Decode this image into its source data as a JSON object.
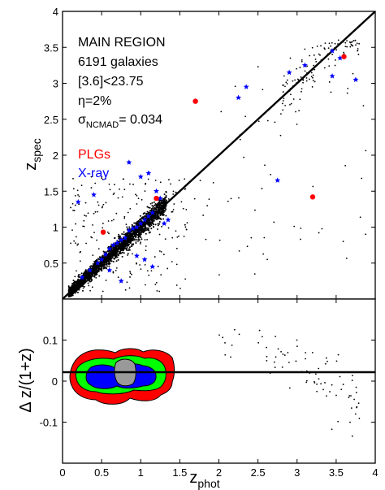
{
  "chart_data": [
    {
      "type": "scatter",
      "panel": "top",
      "xlabel": "z",
      "xlabel_sub": "phot",
      "ylabel": "z",
      "ylabel_sub": "spec",
      "xlim": [
        0,
        4
      ],
      "ylim": [
        0,
        4
      ],
      "xticks": [
        0,
        0.5,
        1,
        1.5,
        2,
        2.5,
        3,
        3.5,
        4
      ],
      "yticks": [
        0.5,
        1,
        1.5,
        2,
        2.5,
        3,
        3.5,
        4
      ],
      "annotations": {
        "region": "MAIN REGION",
        "count": "6191 galaxies",
        "cut": "[3.6]<23.75",
        "eta": "η=2%",
        "sigma_symbol": "σ",
        "sigma_sub": "NCMAD",
        "sigma_value": "= 0.034"
      },
      "legend": [
        {
          "label": "PLGs",
          "color": "#ff0000"
        },
        {
          "label": "X-ray",
          "color": "#0000ff"
        }
      ],
      "reference_line": {
        "from": [
          0,
          0
        ],
        "to": [
          4,
          4
        ],
        "label": "one-to-one"
      },
      "series": [
        {
          "name": "PLGs",
          "color": "#ff0000",
          "marker": "circle",
          "points": [
            [
              1.2,
              1.4
            ],
            [
              3.6,
              3.37
            ],
            [
              3.2,
              1.42
            ],
            [
              1.7,
              2.75
            ],
            [
              0.52,
              0.93
            ]
          ]
        },
        {
          "name": "X-ray",
          "color": "#0000ff",
          "marker": "star",
          "points": [
            [
              0.25,
              0.3
            ],
            [
              0.35,
              0.4
            ],
            [
              0.45,
              0.5
            ],
            [
              0.5,
              0.55
            ],
            [
              0.55,
              0.62
            ],
            [
              0.6,
              0.7
            ],
            [
              0.65,
              0.75
            ],
            [
              0.7,
              0.78
            ],
            [
              0.75,
              0.82
            ],
            [
              0.8,
              0.85
            ],
            [
              0.85,
              0.95
            ],
            [
              0.9,
              0.98
            ],
            [
              0.95,
              1.0
            ],
            [
              1.0,
              1.05
            ],
            [
              1.05,
              1.1
            ],
            [
              1.1,
              1.15
            ],
            [
              1.15,
              1.2
            ],
            [
              0.4,
              1.45
            ],
            [
              0.85,
              1.9
            ],
            [
              1.1,
              1.75
            ],
            [
              1.2,
              1.5
            ],
            [
              1.25,
              1.4
            ],
            [
              1.3,
              1.05
            ],
            [
              1.35,
              1.1
            ],
            [
              0.95,
              0.6
            ],
            [
              1.05,
              0.55
            ],
            [
              1.15,
              0.45
            ],
            [
              0.75,
              0.25
            ],
            [
              0.6,
              0.4
            ],
            [
              1.7,
              2.75
            ],
            [
              2.25,
              2.8
            ],
            [
              2.35,
              2.95
            ],
            [
              2.75,
              1.65
            ],
            [
              2.9,
              3.15
            ],
            [
              3.1,
              3.25
            ],
            [
              3.45,
              3.45
            ],
            [
              3.55,
              3.35
            ],
            [
              3.75,
              3.05
            ],
            [
              3.45,
              3.1
            ],
            [
              1.0,
              1.7
            ],
            [
              0.2,
              1.35
            ]
          ]
        }
      ],
      "background_points_desc": "black dots: 6191 galaxies concentrated along the one-to-one line with scattered outliers"
    },
    {
      "type": "scatter",
      "panel": "bottom",
      "xlabel": "z",
      "xlabel_sub": "phot",
      "ylabel": "Δ z/(1+z)",
      "xlim": [
        0,
        4
      ],
      "ylim": [
        -0.2,
        0.2
      ],
      "xticks": [
        0,
        0.5,
        1,
        1.5,
        2,
        2.5,
        3,
        3.5,
        4
      ],
      "yticks": [
        -0.1,
        0,
        0.1
      ],
      "density_contour_colors": [
        "#ff0000",
        "#00ff00",
        "#0000ff",
        "#999999"
      ],
      "reference_line": {
        "y": 0
      }
    }
  ]
}
